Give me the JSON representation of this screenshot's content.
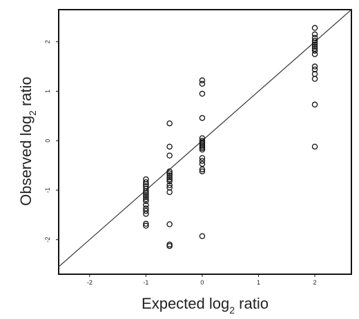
{
  "chart_data": {
    "type": "scatter",
    "xlabel": {
      "prefix": "Expected log",
      "sub": "2",
      "suffix": " ratio"
    },
    "ylabel": {
      "prefix": "Observed log",
      "sub": "2",
      "suffix": " ratio"
    },
    "xlim": [
      -2.55,
      2.65
    ],
    "ylim": [
      -2.7,
      2.65
    ],
    "xticks": [
      -2,
      -1,
      0,
      1,
      2
    ],
    "yticks": [
      -2,
      -1,
      0,
      1,
      2
    ],
    "xtick_labels": [
      "-2",
      "-1",
      "0",
      "1",
      "2"
    ],
    "ytick_labels": [
      "-2",
      "-1",
      "0",
      "1",
      "2"
    ],
    "grid": false,
    "reference_line": {
      "slope": 1,
      "intercept": 0
    },
    "series": [
      {
        "points": [
          [
            -1,
            -0.78
          ],
          [
            -1,
            -0.84
          ],
          [
            -1,
            -0.88
          ],
          [
            -1,
            -0.92
          ],
          [
            -1,
            -0.97
          ],
          [
            -1,
            -1.02
          ],
          [
            -1,
            -1.06
          ],
          [
            -1,
            -1.1
          ],
          [
            -1,
            -1.14
          ],
          [
            -1,
            -1.18
          ],
          [
            -1,
            -1.22
          ],
          [
            -1,
            -1.3
          ],
          [
            -1,
            -1.37
          ],
          [
            -1,
            -1.42
          ],
          [
            -1,
            -1.48
          ],
          [
            -1,
            -1.68
          ],
          [
            -1,
            -1.72
          ],
          [
            -0.58,
            0.35
          ],
          [
            -0.58,
            -0.12
          ],
          [
            -0.58,
            -0.3
          ],
          [
            -0.58,
            -0.62
          ],
          [
            -0.58,
            -0.66
          ],
          [
            -0.58,
            -0.7
          ],
          [
            -0.58,
            -0.74
          ],
          [
            -0.58,
            -0.78
          ],
          [
            -0.58,
            -0.82
          ],
          [
            -0.58,
            -0.9
          ],
          [
            -0.58,
            -0.95
          ],
          [
            -0.58,
            -1.04
          ],
          [
            -0.58,
            -1.69
          ],
          [
            -0.58,
            -2.1
          ],
          [
            -0.58,
            -2.13
          ],
          [
            0,
            1.22
          ],
          [
            0,
            1.15
          ],
          [
            0,
            0.95
          ],
          [
            0,
            0.46
          ],
          [
            0,
            0.05
          ],
          [
            0,
            0.0
          ],
          [
            0,
            -0.03
          ],
          [
            0,
            -0.06
          ],
          [
            0,
            -0.09
          ],
          [
            0,
            -0.12
          ],
          [
            0,
            -0.15
          ],
          [
            0,
            -0.18
          ],
          [
            0,
            -0.35
          ],
          [
            0,
            -0.41
          ],
          [
            0,
            -0.47
          ],
          [
            0,
            -0.58
          ],
          [
            0,
            -0.62
          ],
          [
            0,
            -1.93
          ],
          [
            2,
            2.28
          ],
          [
            2,
            2.15
          ],
          [
            2,
            2.08
          ],
          [
            2,
            2.02
          ],
          [
            2,
            1.98
          ],
          [
            2,
            1.94
          ],
          [
            2,
            1.9
          ],
          [
            2,
            1.86
          ],
          [
            2,
            1.82
          ],
          [
            2,
            1.75
          ],
          [
            2,
            1.5
          ],
          [
            2,
            1.44
          ],
          [
            2,
            1.35
          ],
          [
            2,
            1.25
          ],
          [
            2,
            0.73
          ],
          [
            2,
            -0.12
          ]
        ]
      }
    ]
  }
}
